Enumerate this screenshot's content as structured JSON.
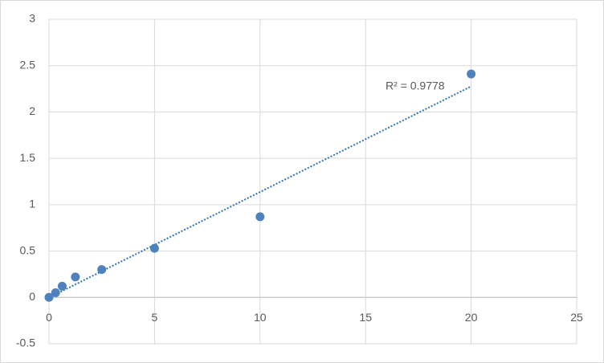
{
  "chart_data": {
    "type": "scatter",
    "x": [
      0,
      0.3125,
      0.625,
      1.25,
      2.5,
      5,
      10,
      20
    ],
    "series": [
      {
        "color": "#4f81bd",
        "values": [
          0.0,
          0.05,
          0.12,
          0.22,
          0.3,
          0.53,
          0.87,
          2.41
        ]
      }
    ],
    "xlim": [
      0,
      25
    ],
    "xticks": [
      0,
      5,
      10,
      15,
      20,
      25
    ],
    "ylim": [
      -0.5,
      3
    ],
    "yticks": [
      -0.5,
      0,
      0.5,
      1,
      1.5,
      2,
      2.5,
      3
    ],
    "grid": true,
    "trendline": "linear",
    "trendline_color": "#2e75b6",
    "annotation": "R² = 0.9778"
  }
}
